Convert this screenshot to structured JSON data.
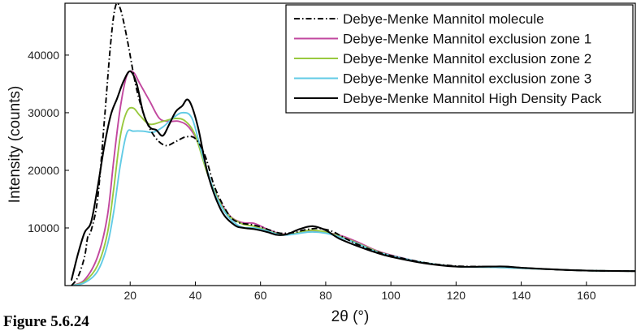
{
  "caption": "Figure 5.6.24",
  "chart_data": {
    "type": "line",
    "title": "",
    "xlabel": "2θ (°)",
    "ylabel": "Intensity (counts)",
    "xlim": [
      0,
      175
    ],
    "ylim": [
      0,
      49000
    ],
    "grid": false,
    "legend_position": "top-right",
    "xticks": [
      20,
      40,
      60,
      80,
      100,
      120,
      140,
      160
    ],
    "yticks": [
      10000,
      20000,
      30000,
      40000
    ],
    "series": [
      {
        "name": "Debye-Menke Mannitol molecule",
        "color": "#000000",
        "dash": "dashdot",
        "points": [
          [
            2,
            0
          ],
          [
            4,
            1500
          ],
          [
            6,
            5000
          ],
          [
            7,
            8500
          ],
          [
            8,
            9500
          ],
          [
            10,
            15000
          ],
          [
            12,
            28000
          ],
          [
            14,
            42000
          ],
          [
            15.5,
            48500
          ],
          [
            17,
            48000
          ],
          [
            19,
            43000
          ],
          [
            22,
            34000
          ],
          [
            25,
            28500
          ],
          [
            28,
            25500
          ],
          [
            31,
            24300
          ],
          [
            34,
            25000
          ],
          [
            37,
            25800
          ],
          [
            40,
            25500
          ],
          [
            43,
            22500
          ],
          [
            46,
            17000
          ],
          [
            50,
            12500
          ],
          [
            53,
            11000
          ],
          [
            57,
            10600
          ],
          [
            60,
            10200
          ],
          [
            63,
            9600
          ],
          [
            66,
            9100
          ],
          [
            70,
            9200
          ],
          [
            74,
            9700
          ],
          [
            78,
            9900
          ],
          [
            82,
            9400
          ],
          [
            86,
            8200
          ],
          [
            90,
            7100
          ],
          [
            95,
            6000
          ],
          [
            100,
            5200
          ],
          [
            110,
            4000
          ],
          [
            120,
            3400
          ],
          [
            130,
            3300
          ],
          [
            135,
            3300
          ],
          [
            140,
            3100
          ],
          [
            150,
            2800
          ],
          [
            160,
            2600
          ],
          [
            175,
            2500
          ]
        ]
      },
      {
        "name": "Debye-Menke Mannitol exclusion zone 1",
        "color": "#c2489f",
        "dash": "solid",
        "points": [
          [
            2,
            0
          ],
          [
            6,
            1000
          ],
          [
            10,
            5000
          ],
          [
            13,
            12000
          ],
          [
            15,
            22000
          ],
          [
            17,
            31000
          ],
          [
            19,
            36500
          ],
          [
            21,
            37000
          ],
          [
            23,
            35000
          ],
          [
            26,
            32000
          ],
          [
            29,
            29000
          ],
          [
            32,
            28500
          ],
          [
            35,
            28500
          ],
          [
            38,
            27500
          ],
          [
            41,
            24500
          ],
          [
            45,
            17500
          ],
          [
            50,
            12500
          ],
          [
            54,
            11000
          ],
          [
            58,
            10800
          ],
          [
            62,
            9800
          ],
          [
            66,
            9000
          ],
          [
            70,
            9000
          ],
          [
            75,
            9400
          ],
          [
            80,
            9200
          ],
          [
            85,
            8600
          ],
          [
            90,
            7500
          ],
          [
            95,
            6200
          ],
          [
            100,
            5300
          ],
          [
            110,
            4000
          ],
          [
            120,
            3300
          ],
          [
            130,
            3200
          ],
          [
            140,
            3000
          ],
          [
            150,
            2800
          ],
          [
            160,
            2600
          ],
          [
            175,
            2500
          ]
        ]
      },
      {
        "name": "Debye-Menke Mannitol exclusion zone 2",
        "color": "#99c93f",
        "dash": "solid",
        "points": [
          [
            2,
            0
          ],
          [
            6,
            700
          ],
          [
            10,
            3500
          ],
          [
            13,
            9000
          ],
          [
            15,
            17000
          ],
          [
            17,
            26000
          ],
          [
            19,
            30200
          ],
          [
            21,
            30800
          ],
          [
            23,
            29500
          ],
          [
            26,
            28000
          ],
          [
            30,
            28500
          ],
          [
            34,
            29000
          ],
          [
            37,
            28500
          ],
          [
            40,
            26000
          ],
          [
            44,
            19000
          ],
          [
            49,
            13000
          ],
          [
            54,
            10800
          ],
          [
            58,
            10300
          ],
          [
            62,
            9600
          ],
          [
            66,
            8900
          ],
          [
            70,
            9000
          ],
          [
            75,
            9600
          ],
          [
            80,
            9300
          ],
          [
            85,
            8400
          ],
          [
            90,
            7300
          ],
          [
            95,
            6100
          ],
          [
            100,
            5200
          ],
          [
            110,
            4000
          ],
          [
            120,
            3300
          ],
          [
            130,
            3200
          ],
          [
            140,
            3000
          ],
          [
            150,
            2800
          ],
          [
            160,
            2600
          ],
          [
            175,
            2500
          ]
        ]
      },
      {
        "name": "Debye-Menke Mannitol exclusion zone 3",
        "color": "#62cbe5",
        "dash": "solid",
        "points": [
          [
            2,
            0
          ],
          [
            6,
            500
          ],
          [
            10,
            2500
          ],
          [
            13,
            7000
          ],
          [
            15,
            13000
          ],
          [
            17,
            21000
          ],
          [
            19,
            26500
          ],
          [
            21,
            26800
          ],
          [
            24,
            26800
          ],
          [
            27,
            26600
          ],
          [
            30,
            27500
          ],
          [
            33,
            29000
          ],
          [
            36,
            30000
          ],
          [
            39,
            29000
          ],
          [
            42,
            23000
          ],
          [
            46,
            16000
          ],
          [
            50,
            12000
          ],
          [
            54,
            10200
          ],
          [
            58,
            10000
          ],
          [
            62,
            9500
          ],
          [
            66,
            8800
          ],
          [
            70,
            8900
          ],
          [
            75,
            9300
          ],
          [
            80,
            9100
          ],
          [
            85,
            8300
          ],
          [
            90,
            7200
          ],
          [
            95,
            6000
          ],
          [
            100,
            5200
          ],
          [
            110,
            4000
          ],
          [
            120,
            3300
          ],
          [
            130,
            3200
          ],
          [
            140,
            3000
          ],
          [
            150,
            2800
          ],
          [
            160,
            2600
          ],
          [
            175,
            2500
          ]
        ]
      },
      {
        "name": "Debye-Menke Mannitol High Density Pack",
        "color": "#000000",
        "dash": "solid",
        "points": [
          [
            2,
            1000
          ],
          [
            4,
            5500
          ],
          [
            6,
            9200
          ],
          [
            8,
            11000
          ],
          [
            10,
            17000
          ],
          [
            12,
            24000
          ],
          [
            14,
            29500
          ],
          [
            16,
            32500
          ],
          [
            18,
            35500
          ],
          [
            20,
            37200
          ],
          [
            22,
            35000
          ],
          [
            24,
            30000
          ],
          [
            26,
            27500
          ],
          [
            28,
            27000
          ],
          [
            30,
            26000
          ],
          [
            32,
            28000
          ],
          [
            34,
            30200
          ],
          [
            36,
            31200
          ],
          [
            37.5,
            32300
          ],
          [
            39,
            31000
          ],
          [
            41,
            27000
          ],
          [
            44,
            19000
          ],
          [
            48,
            13000
          ],
          [
            52,
            10500
          ],
          [
            55,
            10000
          ],
          [
            58,
            9800
          ],
          [
            62,
            9300
          ],
          [
            65,
            8800
          ],
          [
            68,
            8900
          ],
          [
            72,
            9800
          ],
          [
            76,
            10300
          ],
          [
            80,
            9600
          ],
          [
            84,
            8200
          ],
          [
            90,
            6800
          ],
          [
            95,
            5800
          ],
          [
            100,
            5000
          ],
          [
            110,
            3900
          ],
          [
            120,
            3300
          ],
          [
            130,
            3300
          ],
          [
            135,
            3300
          ],
          [
            140,
            3100
          ],
          [
            150,
            2800
          ],
          [
            160,
            2600
          ],
          [
            175,
            2500
          ]
        ]
      }
    ]
  }
}
